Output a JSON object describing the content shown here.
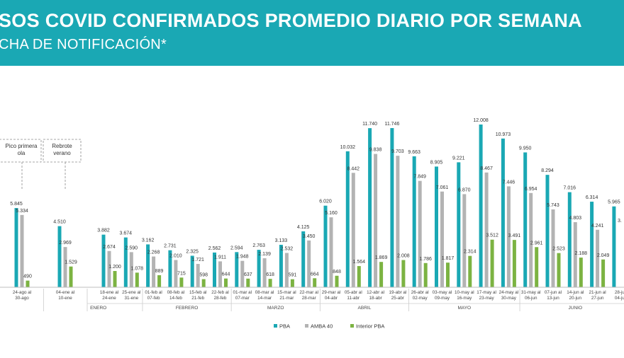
{
  "header": {
    "title": "SOS COVID CONFIRMADOS PROMEDIO DIARIO POR SEMANA",
    "subtitle": "CHA DE NOTIFICACIÓN*"
  },
  "colors": {
    "header_bg": "#1aa8b4",
    "pba": "#1aa8b4",
    "amba40": "#b3b3b3",
    "interior": "#7cb342"
  },
  "chart_data": {
    "type": "bar",
    "series": [
      {
        "name": "PBA",
        "color": "#1aa8b4",
        "values": [
          5845,
          4510,
          3882,
          3674,
          3162,
          2731,
          2325,
          2562,
          2594,
          2763,
          3133,
          4125,
          6020,
          10032,
          11740,
          11746,
          9663,
          8905,
          9221,
          12008,
          10973,
          9950,
          8294,
          7016,
          6314,
          5965
        ]
      },
      {
        "name": "AMBA 40",
        "color": "#b3b3b3",
        "values": [
          5334,
          2969,
          2674,
          2590,
          2268,
          2010,
          1721,
          1911,
          1948,
          2139,
          2532,
          3450,
          5160,
          8442,
          9838,
          9703,
          7849,
          7061,
          6870,
          8467,
          7446,
          6954,
          5743,
          4803,
          4241,
          null
        ]
      },
      {
        "name": "Interior PBA",
        "color": "#7cb342",
        "values": [
          490,
          1529,
          1200,
          1078,
          889,
          715,
          598,
          644,
          637,
          618,
          591,
          664,
          848,
          1564,
          1869,
          2008,
          1786,
          1817,
          2314,
          3512,
          3491,
          2961,
          2523,
          2188,
          2049,
          null
        ]
      }
    ],
    "value_labels": {
      "PBA": [
        "5.845",
        "4.510",
        "3.882",
        "3.674",
        "3.162",
        "2.731",
        "2.325",
        "2.562",
        "2.594",
        "2.763",
        "3.133",
        "4.125",
        "6.020",
        "10.032",
        "11.740",
        "11.746",
        "9.663",
        "8.905",
        "9.221",
        "12.008",
        "10.973",
        "9.950",
        "8.294",
        "7.016",
        "6.314",
        "5.965"
      ],
      "AMBA 40": [
        "5.334",
        "2.969",
        "2.674",
        "2.590",
        "2.268",
        "2.010",
        "1.721",
        "1.911",
        "1.948",
        "2.139",
        "2.532",
        "3.450",
        "5.160",
        "8.442",
        "9.838",
        "9.703",
        "7.849",
        "7.061",
        "6.870",
        "8.467",
        "7.446",
        "6.954",
        "5.743",
        "4.803",
        "4.241",
        "3."
      ],
      "Interior PBA": [
        "490",
        "1.529",
        "1.200",
        "1.078",
        "889",
        "715",
        "598",
        "644",
        "637",
        "618",
        "591",
        "664",
        "848",
        "1.564",
        "1.869",
        "2.008",
        "1.786",
        "1.817",
        "2.314",
        "3.512",
        "3.491",
        "2.961",
        "2.523",
        "2.188",
        "2.049",
        ""
      ]
    },
    "categories": [
      [
        "24-ago al",
        "30-ago"
      ],
      [
        "04-ene al",
        "10-ene"
      ],
      [
        "18-ene al",
        "24-ene"
      ],
      [
        "25-ene al",
        "31-ene"
      ],
      [
        "01-feb al",
        "07-feb"
      ],
      [
        "08-feb al",
        "14-feb"
      ],
      [
        "15-feb al",
        "21-feb"
      ],
      [
        "22-feb al",
        "28-feb"
      ],
      [
        "01-mar al",
        "07-mar"
      ],
      [
        "08-mar al",
        "14-mar"
      ],
      [
        "15-mar al",
        "21-mar"
      ],
      [
        "22-mar al",
        "28-mar"
      ],
      [
        "29-mar al",
        "04-abr"
      ],
      [
        "05-abr al",
        "11-abr"
      ],
      [
        "12-abr al",
        "18-abr"
      ],
      [
        "19-abr al",
        "25-abr"
      ],
      [
        "26-abr al",
        "02-may"
      ],
      [
        "03-may al",
        "09-may"
      ],
      [
        "10-may al",
        "16-may"
      ],
      [
        "17-may al",
        "23-may"
      ],
      [
        "24-may al",
        "30-may"
      ],
      [
        "31-may al",
        "06-jun"
      ],
      [
        "07-jun al",
        "13-jun"
      ],
      [
        "14-jun al",
        "20-jun"
      ],
      [
        "21-jun al",
        "27-jun"
      ],
      [
        "28-ju",
        "04-ju"
      ]
    ],
    "months": [
      {
        "label": "ENERO",
        "from": 1,
        "to": 3
      },
      {
        "label": "FEBRERO",
        "from": 4,
        "to": 7
      },
      {
        "label": "MARZO",
        "from": 8,
        "to": 11
      },
      {
        "label": "ABRIL",
        "from": 12,
        "to": 15
      },
      {
        "label": "MAYO",
        "from": 16,
        "to": 20
      },
      {
        "label": "JUNIO",
        "from": 21,
        "to": 25
      }
    ],
    "annotations": [
      {
        "lines": [
          "Pico primera",
          "ola"
        ],
        "category": 0
      },
      {
        "lines": [
          "Rebrote",
          "verano"
        ],
        "category": 1
      }
    ],
    "legend": {
      "items": [
        "PBA",
        "AMBA 40",
        "Interior PBA"
      ],
      "placement": "bottom-center"
    },
    "ylim": [
      0,
      12008
    ]
  }
}
